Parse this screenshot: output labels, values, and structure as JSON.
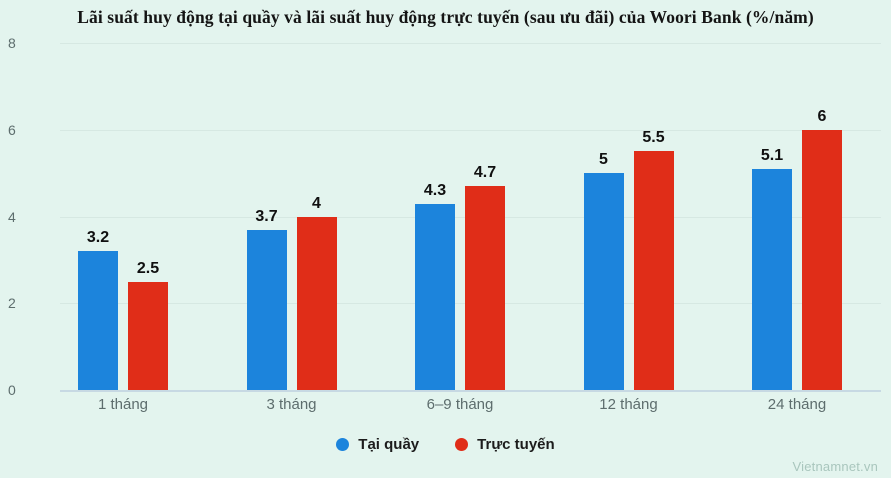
{
  "title": "Lãi suất huy động tại quầy và lãi suất huy động trực tuyến (sau ưu đãi) của Woori Bank (%/năm)",
  "watermark": "Vietnamnet.vn",
  "colors": {
    "background": "#e3f4ee",
    "series_taiquay": "#1c84dc",
    "series_tructuyen": "#e02d18",
    "gridline": "#d6e8e2",
    "baseline": "#c7d9e3"
  },
  "chart_data": {
    "type": "bar",
    "title": "Lãi suất huy động tại quầy và lãi suất huy động trực tuyến (sau ưu đãi) của Woori Bank (%/năm)",
    "categories": [
      "1 tháng",
      "3 tháng",
      "6–9 tháng",
      "12 tháng",
      "24 tháng"
    ],
    "series": [
      {
        "name": "Tại quầy",
        "color": "#1c84dc",
        "values": [
          3.2,
          3.7,
          4.3,
          5,
          5.1
        ]
      },
      {
        "name": "Trực tuyến",
        "color": "#e02d18",
        "values": [
          2.5,
          4,
          4.7,
          5.5,
          6
        ]
      }
    ],
    "xlabel": "",
    "ylabel": "",
    "ylim": [
      0,
      8
    ],
    "yticks": [
      0,
      2,
      4,
      6,
      8
    ],
    "grid": true,
    "legend_position": "bottom",
    "data_labels": true
  }
}
